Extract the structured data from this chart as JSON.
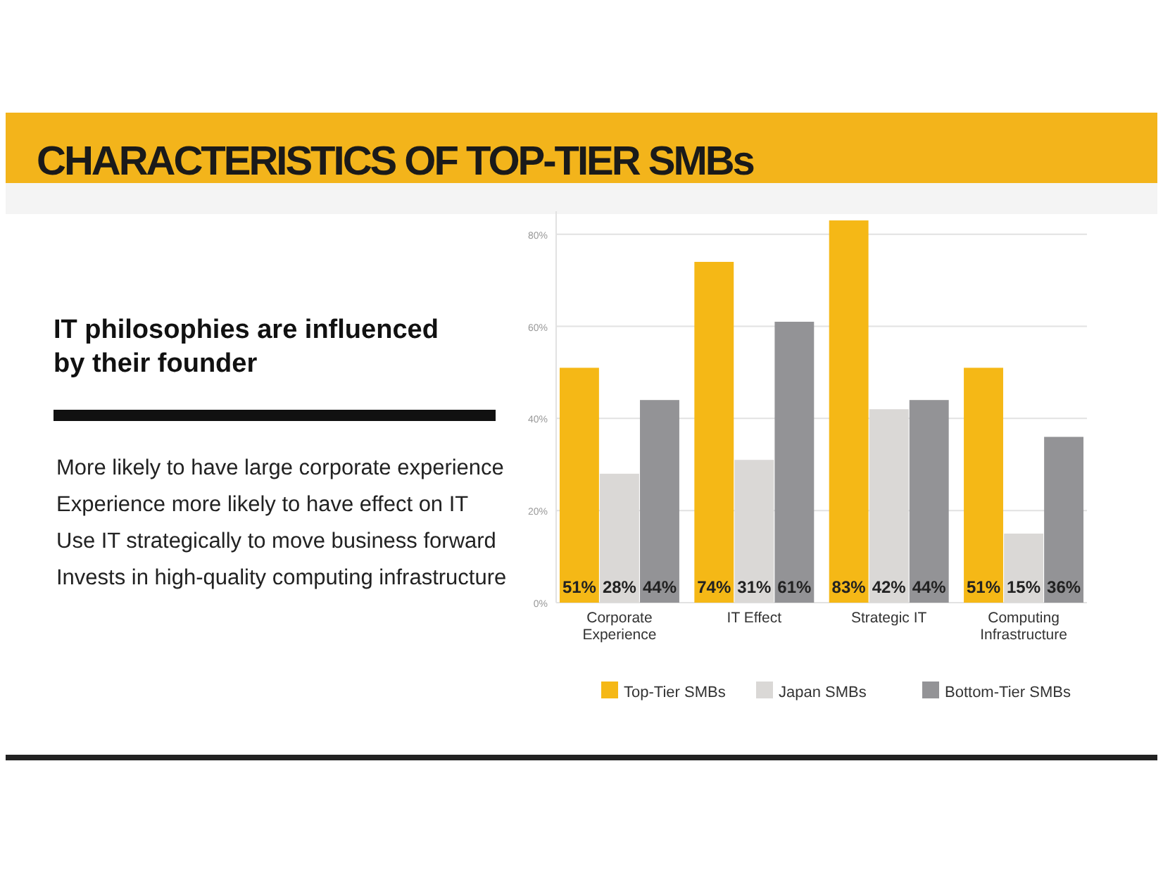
{
  "chart_data": {
    "type": "bar",
    "title": "CHARACTERISTICS OF TOP-TIER SMBs",
    "subtitle": "IT philosophies are influenced by their founder",
    "annotations": [
      "More likely to have large corporate experience",
      "Experience more likely to have effect on IT",
      "Use IT strategically to move business forward",
      "Invests in high-quality computing infrastructure"
    ],
    "categories": [
      "Corporate Experience",
      "IT Effect",
      "Strategic IT",
      "Computing Infrastructure"
    ],
    "series": [
      {
        "name": "Top-Tier SMBs",
        "color": "#f5b816",
        "values": [
          51,
          74,
          83,
          51
        ],
        "value_labels": [
          "51%",
          "74%",
          "83%",
          "51%"
        ]
      },
      {
        "name": "Japan SMBs",
        "color": "#dad8d6",
        "values": [
          28,
          31,
          42,
          15
        ],
        "value_labels": [
          "28%",
          "31%",
          "42%",
          "15%"
        ]
      },
      {
        "name": "Bottom-Tier SMBs",
        "color": "#939396",
        "values": [
          44,
          61,
          44,
          36
        ],
        "value_labels": [
          "44%",
          "61%",
          "44%",
          "36%"
        ]
      }
    ],
    "ylim": [
      0,
      85
    ],
    "yticks": [
      {
        "value": 0,
        "label": "0%"
      },
      {
        "value": 20,
        "label": "20%"
      },
      {
        "value": 40,
        "label": "40%"
      },
      {
        "value": 60,
        "label": "60%"
      },
      {
        "value": 80,
        "label": "80%"
      }
    ],
    "grid": "y",
    "legend": "bottom"
  }
}
